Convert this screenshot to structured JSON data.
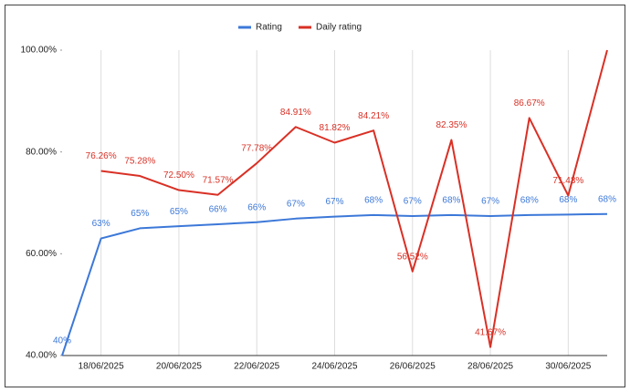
{
  "chart_data": {
    "type": "line",
    "categories": [
      null,
      "18/06/2025",
      null,
      "20/06/2025",
      null,
      "22/06/2025",
      null,
      "24/06/2025",
      null,
      "26/06/2025",
      null,
      "28/06/2025",
      null,
      "30/06/2025",
      null
    ],
    "series": [
      {
        "name": "Rating",
        "color": "#3c78d8",
        "values": [
          40,
          63,
          65,
          65.4,
          65.8,
          66.2,
          66.9,
          67.3,
          67.6,
          67.4,
          67.6,
          67.4,
          67.6,
          67.7,
          67.8
        ],
        "value_labels": [
          "40%",
          "63%",
          "65%",
          "65%",
          "66%",
          "66%",
          "67%",
          "67%",
          "68%",
          "67%",
          "68%",
          "67%",
          "68%",
          "68%",
          "68%"
        ]
      },
      {
        "name": "Daily rating",
        "color": "#d93025",
        "values": [
          null,
          76.26,
          75.28,
          72.5,
          71.57,
          77.78,
          84.91,
          81.82,
          84.21,
          56.52,
          82.35,
          41.67,
          86.67,
          71.43,
          100
        ],
        "value_labels": [
          null,
          "76.26%",
          "75.28%",
          "72.50%",
          "71.57%",
          "77.78%",
          "84.91%",
          "81.82%",
          "84.21%",
          "56.52%",
          "82.35%",
          "41.67%",
          "86.67%",
          "71.43%",
          null
        ]
      }
    ],
    "ylim": [
      40,
      100
    ],
    "yticks": [
      {
        "value": 40,
        "label": "40.00%"
      },
      {
        "value": 60,
        "label": "60.00%"
      },
      {
        "value": 80,
        "label": "80.00%"
      },
      {
        "value": 100,
        "label": "100.00%"
      }
    ],
    "legend": "top",
    "grid": true
  }
}
